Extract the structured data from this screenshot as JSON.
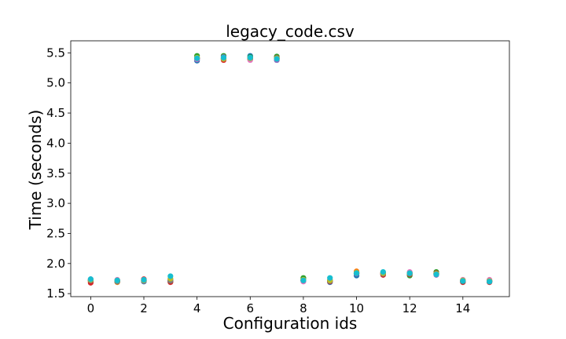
{
  "chart_data": {
    "type": "scatter",
    "title": "legacy_code.csv",
    "xlabel": "Configuration ids",
    "ylabel": "Time (seconds)",
    "xlim": [
      -0.75,
      15.75
    ],
    "ylim": [
      1.45,
      5.7
    ],
    "xticks": [
      0,
      2,
      4,
      6,
      8,
      10,
      12,
      14
    ],
    "yticks": [
      1.5,
      2.0,
      2.5,
      3.0,
      3.5,
      4.0,
      4.5,
      5.0,
      5.5
    ],
    "ytick_labels": [
      "1.5",
      "2.0",
      "2.5",
      "3.0",
      "3.5",
      "4.0",
      "4.5",
      "5.0",
      "5.5"
    ],
    "grid": false,
    "legend": "none",
    "colors": [
      "#1f77b4",
      "#ff7f0e",
      "#2ca02c",
      "#d62728",
      "#9467bd",
      "#8c564b",
      "#e377c2",
      "#7f7f7f",
      "#bcbd22",
      "#17becf"
    ],
    "series": [
      {
        "values": [
          1.72,
          1.71,
          1.7,
          1.7,
          5.37,
          5.39,
          5.45,
          5.38,
          1.71,
          1.69,
          1.8,
          1.83,
          1.85,
          1.83,
          1.7,
          1.7
        ]
      },
      {
        "values": [
          1.7,
          1.69,
          1.72,
          1.72,
          5.42,
          5.41,
          5.42,
          5.41,
          1.74,
          1.71,
          1.87,
          1.84,
          1.83,
          1.82,
          1.71,
          1.72
        ]
      },
      {
        "values": [
          1.71,
          1.7,
          1.71,
          1.71,
          5.45,
          5.45,
          5.43,
          5.44,
          1.76,
          1.72,
          1.84,
          1.83,
          1.8,
          1.86,
          1.72,
          1.71
        ]
      },
      {
        "values": [
          1.68,
          1.72,
          1.74,
          1.69,
          5.4,
          5.38,
          5.39,
          5.4,
          1.72,
          1.7,
          1.85,
          1.81,
          1.82,
          1.84,
          1.69,
          1.69
        ]
      },
      {
        "values": [
          1.74,
          1.72,
          1.71,
          1.73,
          5.39,
          5.43,
          5.41,
          5.38,
          1.73,
          1.72,
          1.83,
          1.85,
          1.84,
          1.81,
          1.71,
          1.71
        ]
      },
      {
        "values": [
          1.72,
          1.71,
          1.72,
          1.71,
          5.41,
          5.4,
          5.4,
          5.42,
          1.72,
          1.71,
          1.84,
          1.83,
          1.83,
          1.83,
          1.7,
          1.7
        ]
      },
      {
        "values": [
          1.73,
          1.73,
          1.73,
          1.74,
          5.4,
          5.4,
          5.38,
          5.4,
          1.7,
          1.73,
          1.85,
          1.84,
          1.86,
          1.82,
          1.73,
          1.73
        ]
      },
      {
        "values": [
          1.72,
          1.7,
          1.72,
          1.72,
          5.41,
          5.41,
          5.41,
          5.41,
          1.72,
          1.71,
          1.84,
          1.83,
          1.83,
          1.83,
          1.71,
          1.71
        ]
      },
      {
        "values": [
          1.73,
          1.72,
          1.72,
          1.75,
          5.42,
          5.4,
          5.41,
          5.41,
          1.73,
          1.72,
          1.85,
          1.84,
          1.84,
          1.83,
          1.72,
          1.71
        ]
      },
      {
        "values": [
          1.74,
          1.72,
          1.73,
          1.79,
          5.41,
          5.42,
          5.42,
          5.4,
          1.72,
          1.76,
          1.84,
          1.86,
          1.84,
          1.82,
          1.71,
          1.7
        ]
      }
    ]
  }
}
